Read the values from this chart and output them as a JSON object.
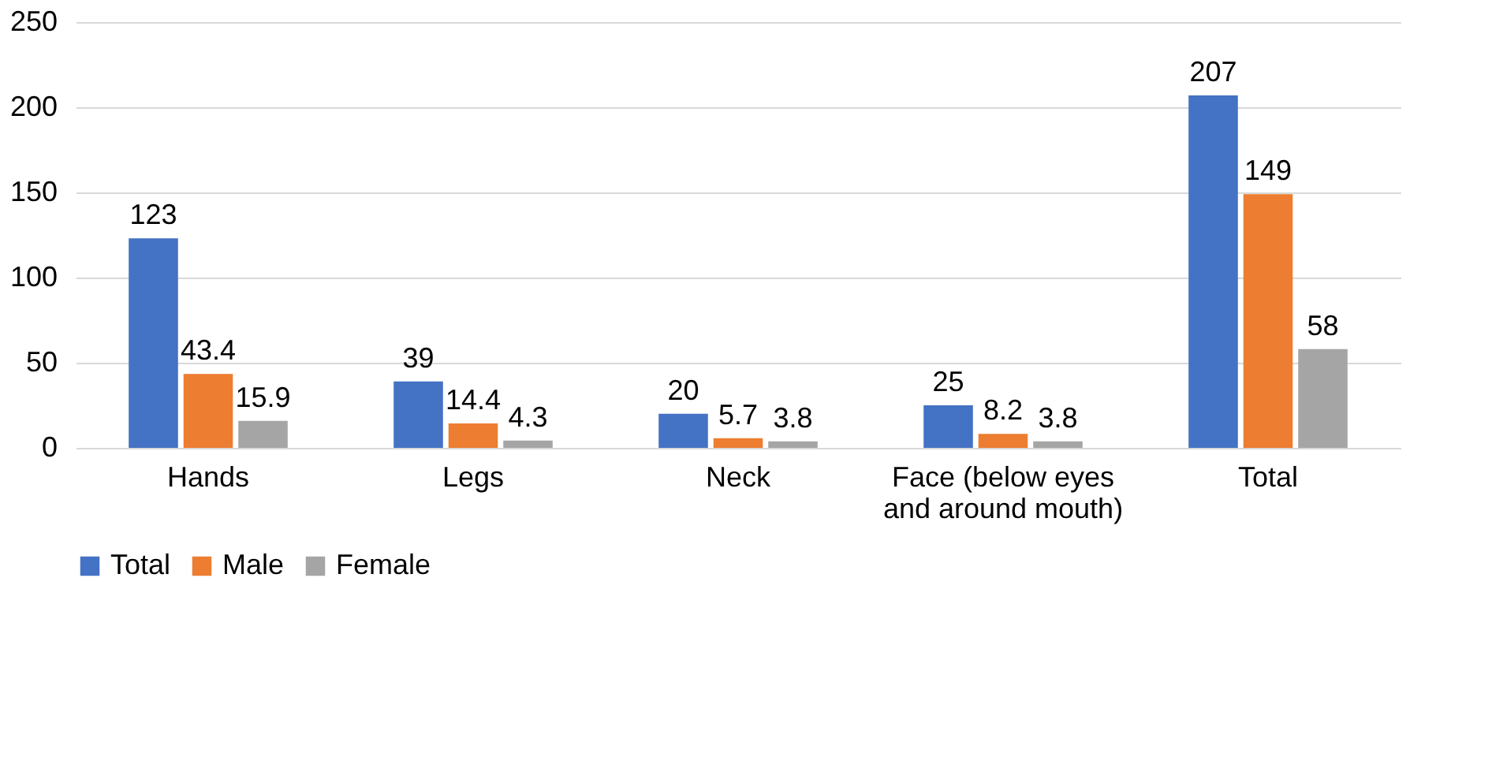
{
  "chart_data": {
    "type": "bar",
    "categories": [
      "Hands",
      "Legs",
      "Neck",
      "Face (below eyes and around mouth)",
      "Total"
    ],
    "series": [
      {
        "name": "Total",
        "color": "#4472c4",
        "values": [
          123,
          39,
          20,
          25,
          207
        ]
      },
      {
        "name": "Male",
        "color": "#ed7d31",
        "values": [
          43.4,
          14.4,
          5.7,
          8.2,
          149
        ]
      },
      {
        "name": "Female",
        "color": "#a5a5a5",
        "values": [
          15.9,
          4.3,
          3.8,
          3.8,
          58
        ]
      }
    ],
    "ylim": [
      0,
      250
    ],
    "yticks": [
      0,
      50,
      100,
      150,
      200,
      250
    ],
    "grid": "y",
    "legend": "bottom",
    "data_labels": true
  }
}
